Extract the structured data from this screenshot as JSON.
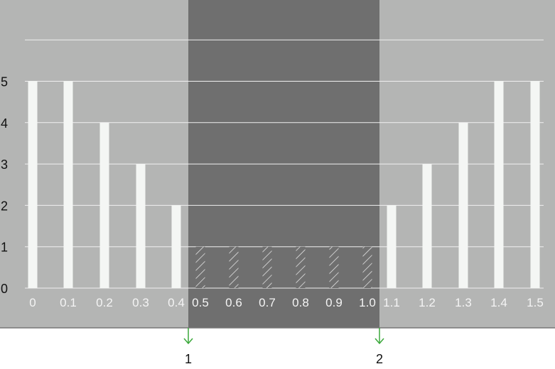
{
  "chart_data": {
    "type": "bar",
    "categories": [
      "0",
      "0.1",
      "0.2",
      "0.3",
      "0.4",
      "0.5",
      "0.6",
      "0.7",
      "0.8",
      "0.9",
      "1.0",
      "1.1",
      "1.2",
      "1.3",
      "1.4",
      "1.5"
    ],
    "values": [
      5,
      5,
      4,
      3,
      2,
      1,
      1,
      1,
      1,
      1,
      1,
      2,
      3,
      4,
      5,
      5
    ],
    "hatched_categories": [
      "0.5",
      "0.6",
      "0.7",
      "0.8",
      "0.9",
      "1.0"
    ],
    "yticks": [
      "0",
      "1",
      "2",
      "3",
      "4",
      "5"
    ],
    "ylim": [
      0,
      6
    ],
    "grid": true,
    "selected_range": {
      "from": "0.5",
      "to": "1.0"
    },
    "markers": [
      {
        "label": "1",
        "at": "0.45"
      },
      {
        "label": "2",
        "at": "1.05"
      }
    ],
    "colors": {
      "background": "#b4b5b4",
      "selection": "#6f6f6f",
      "bar": "#f4f6f4",
      "grid": "#f0f0f0",
      "marker_arrow": "#3aa83a"
    }
  }
}
